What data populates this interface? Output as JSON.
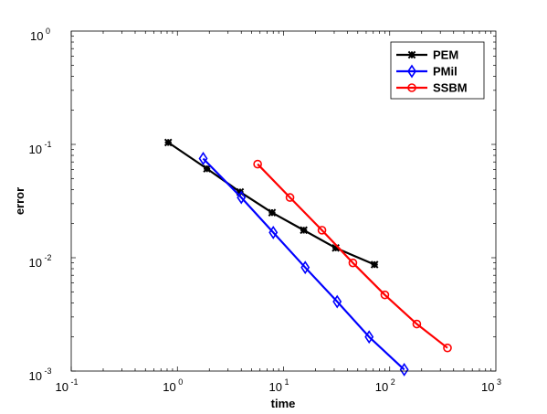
{
  "chart_data": {
    "type": "line",
    "xlabel": "time",
    "ylabel": "error",
    "xscale": "log",
    "yscale": "log",
    "xlim": [
      0.1,
      1000
    ],
    "ylim": [
      0.001,
      1
    ],
    "xticks": [
      {
        "base": "10",
        "exp": "-1"
      },
      {
        "base": "10",
        "exp": "0"
      },
      {
        "base": "10",
        "exp": "1"
      },
      {
        "base": "10",
        "exp": "2"
      },
      {
        "base": "10",
        "exp": "3"
      }
    ],
    "yticks": [
      {
        "base": "10",
        "exp": "-3"
      },
      {
        "base": "10",
        "exp": "-2"
      },
      {
        "base": "10",
        "exp": "-1"
      },
      {
        "base": "10",
        "exp": "0"
      }
    ],
    "legend_position": "top-right",
    "grid": false,
    "series": [
      {
        "name": "PEM",
        "color": "#000000",
        "marker": "asterisk",
        "x": [
          0.82,
          1.9,
          3.9,
          7.8,
          15.5,
          31,
          72
        ],
        "y": [
          0.104,
          0.061,
          0.038,
          0.025,
          0.0175,
          0.0122,
          0.0087
        ]
      },
      {
        "name": "PMil",
        "color": "#0000ff",
        "marker": "diamond",
        "x": [
          1.75,
          4.0,
          8.0,
          16,
          32,
          64,
          137
        ],
        "y": [
          0.075,
          0.034,
          0.0167,
          0.0082,
          0.0041,
          0.002,
          0.00103
        ]
      },
      {
        "name": "SSBM",
        "color": "#ff0000",
        "marker": "circle",
        "x": [
          5.7,
          11.5,
          23,
          45,
          90,
          180,
          350
        ],
        "y": [
          0.067,
          0.034,
          0.0175,
          0.009,
          0.0047,
          0.0026,
          0.0016
        ]
      }
    ]
  }
}
